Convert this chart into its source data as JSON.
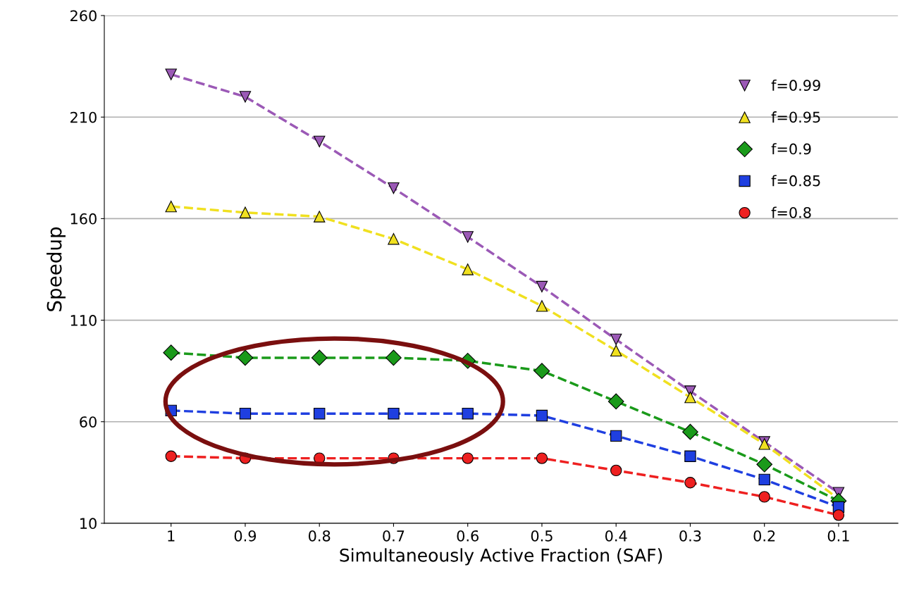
{
  "chart_data": {
    "type": "line",
    "xlabel": "Simultaneously Active Fraction (SAF)",
    "ylabel": "Speedup",
    "categories": [
      "1",
      "0.9",
      "0.8",
      "0.7",
      "0.6",
      "0.5",
      "0.4",
      "0.3",
      "0.2",
      "0.1"
    ],
    "ylim": [
      10,
      260
    ],
    "yticks": [
      10,
      60,
      110,
      160,
      210,
      260
    ],
    "grid": "y",
    "legend": "top right",
    "line_style": "dashed",
    "series": [
      {
        "name": "f=0.99",
        "color": "#9b59b6",
        "marker": "triangle_down",
        "values": [
          231,
          220,
          198,
          175,
          151,
          126.5,
          100.5,
          75,
          50,
          25
        ]
      },
      {
        "name": "f=0.95",
        "color": "#f0e020",
        "marker": "triangle",
        "values": [
          166,
          163,
          161,
          150,
          135,
          117,
          95,
          72,
          49,
          22
        ]
      },
      {
        "name": "f=0.9",
        "color": "#1a9a1a",
        "marker": "diamond",
        "values": [
          94,
          91.5,
          91.5,
          91.5,
          90,
          85,
          70,
          55,
          39,
          21
        ]
      },
      {
        "name": "f=0.85",
        "color": "#1f3fe0",
        "marker": "square",
        "values": [
          65.5,
          64,
          64,
          64,
          64,
          63,
          53,
          43,
          31.5,
          18
        ]
      },
      {
        "name": "f=0.8",
        "color": "#ee2020",
        "marker": "circle",
        "values": [
          43,
          42,
          42,
          42,
          42,
          42,
          36,
          30,
          23,
          14
        ]
      }
    ]
  }
}
